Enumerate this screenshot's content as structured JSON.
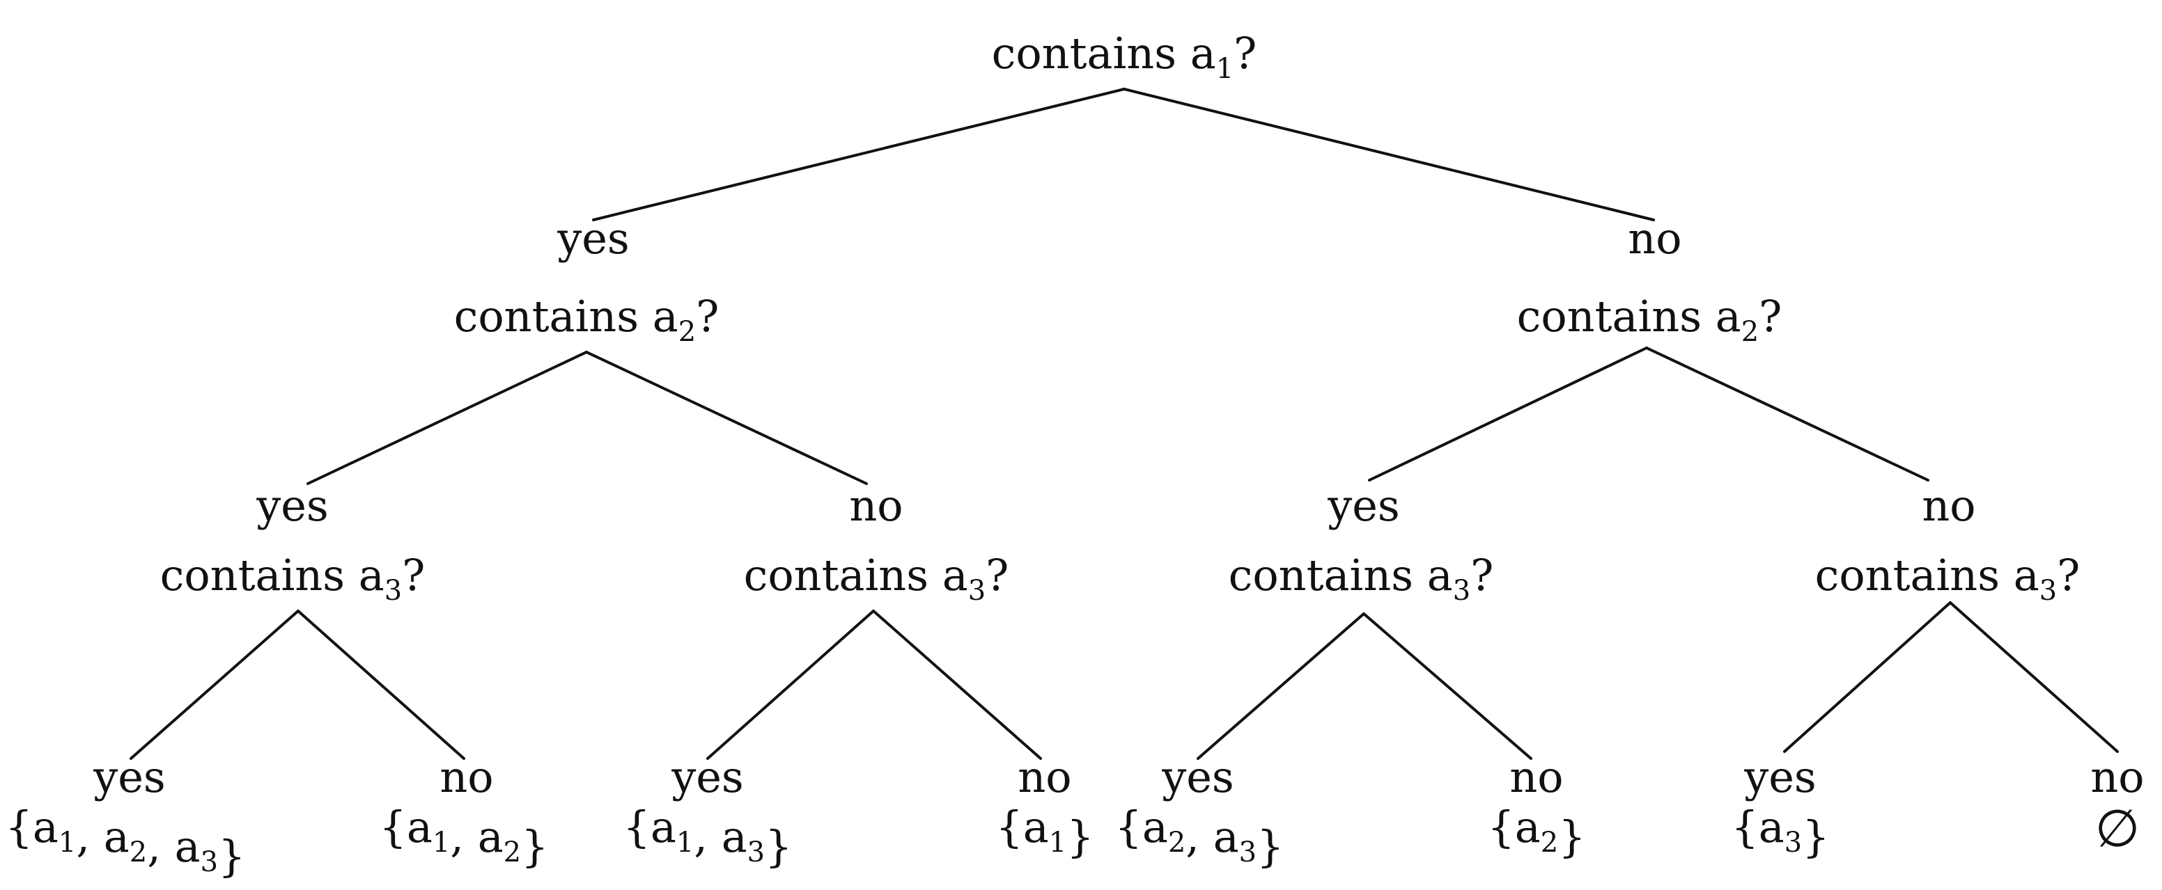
{
  "tree": {
    "question": "contains a?",
    "question_sub": "1",
    "yes": {
      "label": "yes",
      "question": "contains a?",
      "question_sub": "2",
      "yes": {
        "label": "yes",
        "question": "contains a?",
        "question_sub": "3",
        "yes": {
          "label": "yes",
          "set": "{a1, a2, a3}"
        },
        "no": {
          "label": "no",
          "set": "{a1, a2}"
        }
      },
      "no": {
        "label": "no",
        "question": "contains a?",
        "question_sub": "3",
        "yes": {
          "label": "yes",
          "set": "{a1, a3}"
        },
        "no": {
          "label": "no",
          "set": "{a1}"
        }
      }
    },
    "no": {
      "label": "no",
      "question": "contains a?",
      "question_sub": "2",
      "yes": {
        "label": "yes",
        "question": "contains a?",
        "question_sub": "3",
        "yes": {
          "label": "yes",
          "set": "{a2, a3}"
        },
        "no": {
          "label": "no",
          "set": "{a2}"
        }
      },
      "no": {
        "label": "no",
        "question": "contains a?",
        "question_sub": "3",
        "yes": {
          "label": "yes",
          "set": "{a3}"
        },
        "no": {
          "label": "no",
          "set": "∅"
        }
      }
    }
  }
}
